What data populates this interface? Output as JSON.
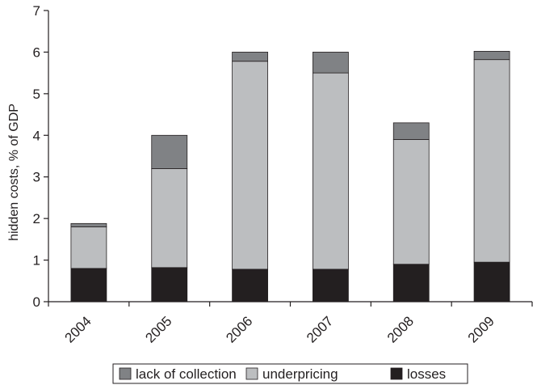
{
  "chart_data": {
    "type": "bar",
    "stacked": true,
    "categories": [
      "2004",
      "2005",
      "2006",
      "2007",
      "2008",
      "2009"
    ],
    "series": [
      {
        "name": "losses",
        "color": "#231f20",
        "values": [
          0.8,
          0.82,
          0.78,
          0.78,
          0.9,
          0.95
        ]
      },
      {
        "name": "underpricing",
        "color": "#bcbec0",
        "values": [
          1.0,
          2.38,
          5.0,
          4.72,
          3.0,
          4.87
        ]
      },
      {
        "name": "lack of collection",
        "color": "#808285",
        "values": [
          0.08,
          0.8,
          0.22,
          0.5,
          0.4,
          0.2
        ]
      }
    ],
    "title": "",
    "xlabel": "",
    "ylabel": "hidden costs, % of GDP",
    "ylim": [
      0,
      7
    ],
    "yticks": [
      0,
      1,
      2,
      3,
      4,
      5,
      6,
      7
    ],
    "grid": false,
    "legend": {
      "placement": "bottom-center",
      "order": [
        "lack of collection",
        "underpricing",
        "losses"
      ]
    }
  }
}
